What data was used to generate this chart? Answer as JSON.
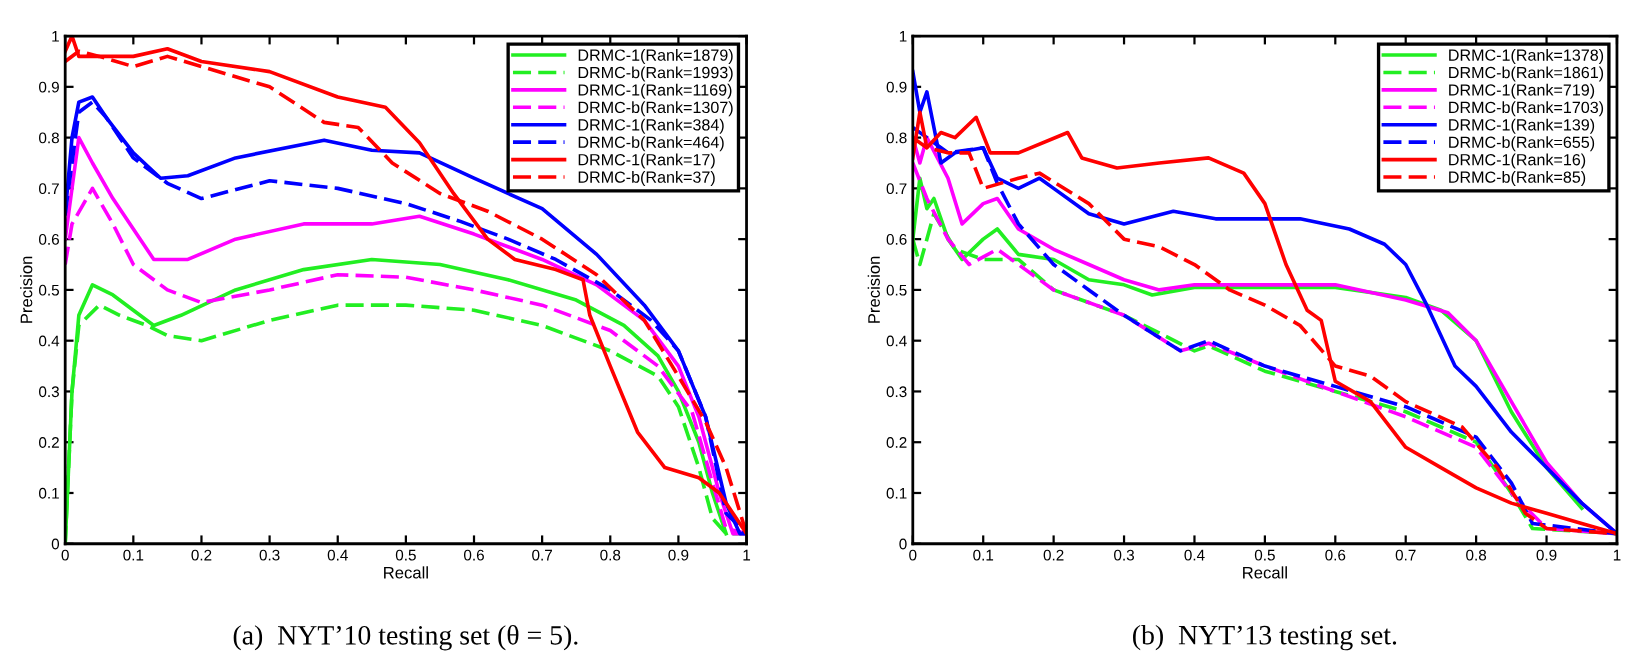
{
  "chart_data": [
    {
      "type": "line",
      "title": "(a)  NYT’10 testing set (θ = 5).",
      "xlabel": "Recall",
      "ylabel": "Precision",
      "xlim": [
        0,
        1
      ],
      "ylim": [
        0,
        1
      ],
      "xticks": [
        0,
        0.1,
        0.2,
        0.3,
        0.4,
        0.5,
        0.6,
        0.7,
        0.8,
        0.9,
        1
      ],
      "yticks": [
        0,
        0.1,
        0.2,
        0.3,
        0.4,
        0.5,
        0.6,
        0.7,
        0.8,
        0.9,
        1
      ],
      "grid": false,
      "legend": "top right",
      "marker": "none",
      "series": [
        {
          "name": "DRMC-1(Rank=1879)",
          "color": "#22ee22",
          "line_style": "solid",
          "x": [
            0,
            0.01,
            0.02,
            0.04,
            0.07,
            0.1,
            0.13,
            0.17,
            0.25,
            0.35,
            0.45,
            0.55,
            0.65,
            0.75,
            0.82,
            0.87,
            0.9,
            0.93,
            0.95,
            0.97
          ],
          "values": [
            0,
            0.3,
            0.45,
            0.51,
            0.49,
            0.46,
            0.43,
            0.45,
            0.5,
            0.54,
            0.56,
            0.55,
            0.52,
            0.48,
            0.43,
            0.37,
            0.3,
            0.2,
            0.1,
            0.02
          ]
        },
        {
          "name": "DRMC-b(Rank=1993)",
          "color": "#22ee22",
          "line_style": "dashed",
          "x": [
            0,
            0.01,
            0.02,
            0.05,
            0.08,
            0.12,
            0.15,
            0.2,
            0.3,
            0.4,
            0.5,
            0.6,
            0.7,
            0.8,
            0.87,
            0.9,
            0.93,
            0.95,
            0.97,
            1
          ],
          "values": [
            0,
            0.3,
            0.43,
            0.47,
            0.45,
            0.43,
            0.41,
            0.4,
            0.44,
            0.47,
            0.47,
            0.46,
            0.43,
            0.38,
            0.33,
            0.27,
            0.15,
            0.05,
            0.02,
            0.02
          ]
        },
        {
          "name": "DRMC-1(Rank=1169)",
          "color": "#ff00ff",
          "line_style": "solid",
          "x": [
            0,
            0.01,
            0.02,
            0.04,
            0.07,
            0.1,
            0.13,
            0.18,
            0.25,
            0.35,
            0.45,
            0.52,
            0.6,
            0.7,
            0.78,
            0.85,
            0.9,
            0.93,
            0.96,
            0.98,
            1
          ],
          "values": [
            0.6,
            0.7,
            0.8,
            0.75,
            0.68,
            0.62,
            0.56,
            0.56,
            0.6,
            0.63,
            0.63,
            0.645,
            0.61,
            0.56,
            0.51,
            0.44,
            0.35,
            0.25,
            0.1,
            0.02,
            0.02
          ]
        },
        {
          "name": "DRMC-b(Rank=1307)",
          "color": "#ff00ff",
          "line_style": "dashed",
          "x": [
            0,
            0.01,
            0.04,
            0.07,
            0.1,
            0.15,
            0.2,
            0.3,
            0.4,
            0.5,
            0.6,
            0.7,
            0.8,
            0.87,
            0.92,
            0.95,
            0.97,
            1
          ],
          "values": [
            0.55,
            0.63,
            0.7,
            0.63,
            0.55,
            0.5,
            0.475,
            0.5,
            0.53,
            0.525,
            0.5,
            0.47,
            0.42,
            0.35,
            0.26,
            0.12,
            0.03,
            0.02
          ]
        },
        {
          "name": "DRMC-1(Rank=384)",
          "color": "#0000ff",
          "line_style": "solid",
          "x": [
            0,
            0.01,
            0.02,
            0.04,
            0.06,
            0.1,
            0.14,
            0.18,
            0.25,
            0.38,
            0.45,
            0.52,
            0.6,
            0.7,
            0.78,
            0.85,
            0.9,
            0.94,
            0.97,
            0.99,
            1
          ],
          "values": [
            0.65,
            0.8,
            0.87,
            0.88,
            0.84,
            0.77,
            0.72,
            0.725,
            0.76,
            0.795,
            0.775,
            0.77,
            0.72,
            0.66,
            0.57,
            0.47,
            0.38,
            0.25,
            0.08,
            0.02,
            0.02
          ]
        },
        {
          "name": "DRMC-b(Rank=464)",
          "color": "#0000ff",
          "line_style": "dashed",
          "x": [
            0,
            0.02,
            0.04,
            0.06,
            0.1,
            0.15,
            0.2,
            0.3,
            0.4,
            0.5,
            0.58,
            0.65,
            0.72,
            0.8,
            0.86,
            0.9,
            0.94,
            0.97,
            1
          ],
          "values": [
            0.65,
            0.85,
            0.87,
            0.84,
            0.76,
            0.71,
            0.68,
            0.715,
            0.7,
            0.67,
            0.635,
            0.6,
            0.56,
            0.5,
            0.44,
            0.38,
            0.25,
            0.06,
            0.02
          ]
        },
        {
          "name": "DRMC-1(Rank=17)",
          "color": "#ff0000",
          "line_style": "solid",
          "x": [
            0,
            0.01,
            0.02,
            0.05,
            0.1,
            0.15,
            0.2,
            0.3,
            0.4,
            0.47,
            0.52,
            0.57,
            0.62,
            0.66,
            0.72,
            0.76,
            0.77,
            0.8,
            0.84,
            0.88,
            0.93,
            0.96,
            1
          ],
          "values": [
            0.97,
            1.0,
            0.96,
            0.96,
            0.96,
            0.975,
            0.95,
            0.93,
            0.88,
            0.86,
            0.79,
            0.69,
            0.6,
            0.56,
            0.54,
            0.52,
            0.45,
            0.35,
            0.22,
            0.15,
            0.13,
            0.1,
            0.02
          ]
        },
        {
          "name": "DRMC-b(Rank=37)",
          "color": "#ff0000",
          "line_style": "dashed",
          "x": [
            0,
            0.02,
            0.05,
            0.1,
            0.15,
            0.2,
            0.3,
            0.38,
            0.43,
            0.48,
            0.55,
            0.62,
            0.7,
            0.78,
            0.85,
            0.9,
            0.94,
            0.97,
            1
          ],
          "values": [
            0.95,
            0.97,
            0.96,
            0.94,
            0.96,
            0.94,
            0.9,
            0.83,
            0.82,
            0.75,
            0.69,
            0.655,
            0.6,
            0.53,
            0.44,
            0.33,
            0.24,
            0.15,
            0.02
          ]
        }
      ]
    },
    {
      "type": "line",
      "title": "(b)  NYT’13 testing set.",
      "xlabel": "Recall",
      "ylabel": "Precision",
      "xlim": [
        0,
        1
      ],
      "ylim": [
        0,
        1
      ],
      "xticks": [
        0,
        0.1,
        0.2,
        0.3,
        0.4,
        0.5,
        0.6,
        0.7,
        0.8,
        0.9,
        1
      ],
      "yticks": [
        0,
        0.1,
        0.2,
        0.3,
        0.4,
        0.5,
        0.6,
        0.7,
        0.8,
        0.9,
        1
      ],
      "grid": false,
      "legend": "top right",
      "marker": "none",
      "series": [
        {
          "name": "DRMC-1(Rank=1378)",
          "color": "#22ee22",
          "line_style": "solid",
          "x": [
            0,
            0.01,
            0.02,
            0.03,
            0.05,
            0.07,
            0.1,
            0.12,
            0.15,
            0.2,
            0.25,
            0.3,
            0.34,
            0.4,
            0.5,
            0.6,
            0.7,
            0.75,
            0.8,
            0.85,
            0.9,
            0.95
          ],
          "values": [
            0.6,
            0.72,
            0.66,
            0.68,
            0.6,
            0.56,
            0.6,
            0.62,
            0.57,
            0.56,
            0.52,
            0.51,
            0.49,
            0.505,
            0.505,
            0.505,
            0.485,
            0.46,
            0.4,
            0.26,
            0.15,
            0.07
          ]
        },
        {
          "name": "DRMC-b(Rank=1861)",
          "color": "#22ee22",
          "line_style": "dashed",
          "x": [
            0,
            0.01,
            0.03,
            0.06,
            0.1,
            0.15,
            0.2,
            0.3,
            0.4,
            0.42,
            0.5,
            0.6,
            0.7,
            0.8,
            0.85,
            0.88,
            1
          ],
          "values": [
            0.6,
            0.55,
            0.65,
            0.58,
            0.56,
            0.56,
            0.5,
            0.45,
            0.38,
            0.39,
            0.34,
            0.3,
            0.26,
            0.2,
            0.1,
            0.03,
            0.02
          ]
        },
        {
          "name": "DRMC-1(Rank=719)",
          "color": "#ff00ff",
          "line_style": "solid",
          "x": [
            0,
            0.01,
            0.02,
            0.05,
            0.07,
            0.1,
            0.12,
            0.15,
            0.2,
            0.25,
            0.3,
            0.35,
            0.4,
            0.5,
            0.6,
            0.7,
            0.76,
            0.8,
            0.85,
            0.9,
            0.95,
            1
          ],
          "values": [
            0.8,
            0.75,
            0.8,
            0.72,
            0.63,
            0.67,
            0.68,
            0.62,
            0.58,
            0.55,
            0.52,
            0.5,
            0.51,
            0.51,
            0.51,
            0.48,
            0.455,
            0.4,
            0.28,
            0.16,
            0.08,
            0.02
          ]
        },
        {
          "name": "DRMC-b(Rank=1703)",
          "color": "#ff00ff",
          "line_style": "dashed",
          "x": [
            0,
            0.02,
            0.05,
            0.08,
            0.12,
            0.2,
            0.3,
            0.38,
            0.42,
            0.5,
            0.6,
            0.7,
            0.8,
            0.85,
            0.9,
            1
          ],
          "values": [
            0.75,
            0.68,
            0.6,
            0.55,
            0.58,
            0.5,
            0.45,
            0.38,
            0.395,
            0.35,
            0.3,
            0.25,
            0.19,
            0.1,
            0.03,
            0.02
          ]
        },
        {
          "name": "DRMC-1(Rank=139)",
          "color": "#0000ff",
          "line_style": "solid",
          "x": [
            0,
            0.01,
            0.02,
            0.04,
            0.06,
            0.1,
            0.12,
            0.15,
            0.18,
            0.2,
            0.25,
            0.3,
            0.37,
            0.43,
            0.55,
            0.62,
            0.67,
            0.7,
            0.73,
            0.77,
            0.8,
            0.85,
            0.9,
            0.95,
            1
          ],
          "values": [
            0.93,
            0.85,
            0.89,
            0.75,
            0.77,
            0.78,
            0.72,
            0.7,
            0.72,
            0.7,
            0.65,
            0.63,
            0.655,
            0.64,
            0.64,
            0.62,
            0.59,
            0.55,
            0.47,
            0.35,
            0.31,
            0.22,
            0.15,
            0.08,
            0.02
          ]
        },
        {
          "name": "DRMC-b(Rank=655)",
          "color": "#0000ff",
          "line_style": "dashed",
          "x": [
            0,
            0.02,
            0.05,
            0.1,
            0.12,
            0.15,
            0.2,
            0.25,
            0.3,
            0.38,
            0.42,
            0.5,
            0.6,
            0.7,
            0.8,
            0.85,
            0.88,
            1
          ],
          "values": [
            0.82,
            0.8,
            0.77,
            0.78,
            0.71,
            0.63,
            0.55,
            0.5,
            0.45,
            0.38,
            0.4,
            0.35,
            0.31,
            0.27,
            0.21,
            0.12,
            0.04,
            0.02
          ]
        },
        {
          "name": "DRMC-1(Rank=16)",
          "color": "#ff0000",
          "line_style": "solid",
          "x": [
            0,
            0.01,
            0.02,
            0.04,
            0.06,
            0.09,
            0.11,
            0.15,
            0.22,
            0.24,
            0.29,
            0.35,
            0.42,
            0.47,
            0.5,
            0.53,
            0.56,
            0.58,
            0.6,
            0.65,
            0.7,
            0.75,
            0.8,
            0.85,
            0.9,
            0.95,
            1
          ],
          "values": [
            0.76,
            0.85,
            0.78,
            0.81,
            0.8,
            0.84,
            0.77,
            0.77,
            0.81,
            0.76,
            0.74,
            0.75,
            0.76,
            0.73,
            0.67,
            0.55,
            0.46,
            0.44,
            0.32,
            0.28,
            0.19,
            0.15,
            0.11,
            0.08,
            0.06,
            0.04,
            0.02
          ]
        },
        {
          "name": "DRMC-b(Rank=85)",
          "color": "#ff0000",
          "line_style": "dashed",
          "x": [
            0,
            0.02,
            0.05,
            0.08,
            0.1,
            0.15,
            0.18,
            0.25,
            0.3,
            0.35,
            0.4,
            0.45,
            0.5,
            0.55,
            0.6,
            0.65,
            0.7,
            0.78,
            0.83,
            0.87,
            0.9,
            1
          ],
          "values": [
            0.8,
            0.78,
            0.77,
            0.77,
            0.7,
            0.72,
            0.73,
            0.67,
            0.6,
            0.585,
            0.55,
            0.5,
            0.47,
            0.43,
            0.35,
            0.33,
            0.28,
            0.23,
            0.15,
            0.06,
            0.03,
            0.02
          ]
        }
      ]
    }
  ]
}
